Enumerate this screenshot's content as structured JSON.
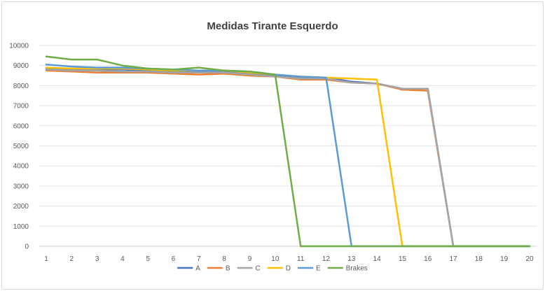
{
  "chart_data": {
    "type": "line",
    "title": "Medidas Tirante Esquerdo",
    "xlabel": "",
    "ylabel": "",
    "x": [
      1,
      2,
      3,
      4,
      5,
      6,
      7,
      8,
      9,
      10,
      11,
      12,
      13,
      14,
      15,
      16,
      17,
      18,
      19,
      20
    ],
    "ylim": [
      0,
      10000
    ],
    "yticks": [
      0,
      1000,
      2000,
      3000,
      4000,
      5000,
      6000,
      7000,
      8000,
      9000,
      10000
    ],
    "grid": true,
    "legend_position": "bottom",
    "series": [
      {
        "name": "A",
        "color": "#4472c4",
        "values": [
          8850,
          8800,
          8800,
          8800,
          8750,
          8700,
          8700,
          8700,
          8600,
          8500,
          8400,
          8400,
          8200,
          8100,
          7850,
          7850,
          0,
          0,
          0,
          0
        ]
      },
      {
        "name": "B",
        "color": "#ed7d31",
        "values": [
          8750,
          8700,
          8650,
          8650,
          8650,
          8600,
          8550,
          8600,
          8500,
          8450,
          8300,
          8300,
          8150,
          8100,
          7800,
          7750,
          0,
          0,
          0,
          0
        ]
      },
      {
        "name": "C",
        "color": "#a5a5a5",
        "values": [
          8800,
          8750,
          8750,
          8700,
          8700,
          8650,
          8650,
          8650,
          8550,
          8450,
          8350,
          8350,
          8150,
          8100,
          7850,
          7850,
          0,
          0,
          0,
          0
        ]
      },
      {
        "name": "D",
        "color": "#ffc000",
        "values": [
          8900,
          8850,
          8850,
          8850,
          8800,
          8750,
          8750,
          8750,
          8650,
          8550,
          8450,
          8400,
          8350,
          8300,
          0,
          0,
          0,
          0,
          0,
          0
        ]
      },
      {
        "name": "E",
        "color": "#5b9bd5",
        "values": [
          9050,
          8950,
          8900,
          8900,
          8850,
          8800,
          8750,
          8750,
          8700,
          8550,
          8450,
          8400,
          0,
          0,
          0,
          0,
          0,
          0,
          0,
          0
        ]
      },
      {
        "name": "Brakes",
        "color": "#70ad47",
        "values": [
          9450,
          9300,
          9300,
          9000,
          8850,
          8800,
          8900,
          8750,
          8700,
          8550,
          0,
          0,
          0,
          0,
          0,
          0,
          0,
          0,
          0,
          0
        ]
      }
    ]
  }
}
